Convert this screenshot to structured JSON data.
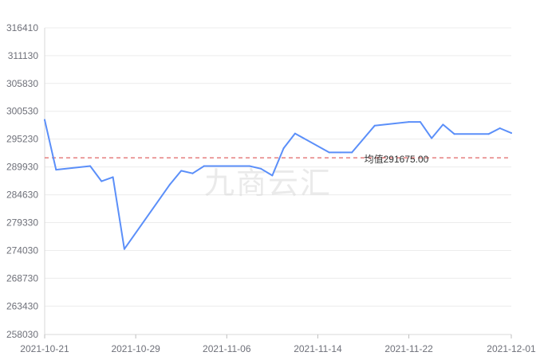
{
  "watermark": "九商云汇",
  "chart_data": {
    "type": "line",
    "title": "",
    "xlabel": "",
    "ylabel": "",
    "ylim": [
      258030,
      316410
    ],
    "y_ticks": [
      258030,
      263430,
      268730,
      274030,
      279330,
      284630,
      289930,
      295230,
      300530,
      305830,
      311130,
      316410
    ],
    "x_ticks": [
      "2021-10-21",
      "2021-10-29",
      "2021-11-06",
      "2021-11-14",
      "2021-11-22",
      "2021-12-01"
    ],
    "grid": true,
    "series": [
      {
        "color": "#5b8ff9",
        "points": [
          {
            "x": "2021-10-21",
            "y": 298900
          },
          {
            "x": "2021-10-22",
            "y": 289400
          },
          {
            "x": "2021-10-25",
            "y": 290100
          },
          {
            "x": "2021-10-26",
            "y": 287200
          },
          {
            "x": "2021-10-27",
            "y": 288000
          },
          {
            "x": "2021-10-28",
            "y": 274300
          },
          {
            "x": "2021-11-01",
            "y": 286600
          },
          {
            "x": "2021-11-02",
            "y": 289200
          },
          {
            "x": "2021-11-03",
            "y": 288700
          },
          {
            "x": "2021-11-04",
            "y": 290100
          },
          {
            "x": "2021-11-08",
            "y": 290100
          },
          {
            "x": "2021-11-09",
            "y": 289600
          },
          {
            "x": "2021-11-10",
            "y": 288300
          },
          {
            "x": "2021-11-11",
            "y": 293500
          },
          {
            "x": "2021-11-12",
            "y": 296300
          },
          {
            "x": "2021-11-15",
            "y": 292700
          },
          {
            "x": "2021-11-16",
            "y": 292700
          },
          {
            "x": "2021-11-17",
            "y": 292700
          },
          {
            "x": "2021-11-19",
            "y": 297800
          },
          {
            "x": "2021-11-22",
            "y": 298500
          },
          {
            "x": "2021-11-23",
            "y": 298500
          },
          {
            "x": "2021-11-24",
            "y": 295400
          },
          {
            "x": "2021-11-25",
            "y": 298000
          },
          {
            "x": "2021-11-26",
            "y": 296200
          },
          {
            "x": "2021-11-29",
            "y": 296200
          },
          {
            "x": "2021-11-30",
            "y": 297300
          },
          {
            "x": "2021-12-01",
            "y": 296400
          }
        ]
      }
    ],
    "average": {
      "value": 291675,
      "label": "均值291675.00",
      "color": "#e06666"
    }
  }
}
